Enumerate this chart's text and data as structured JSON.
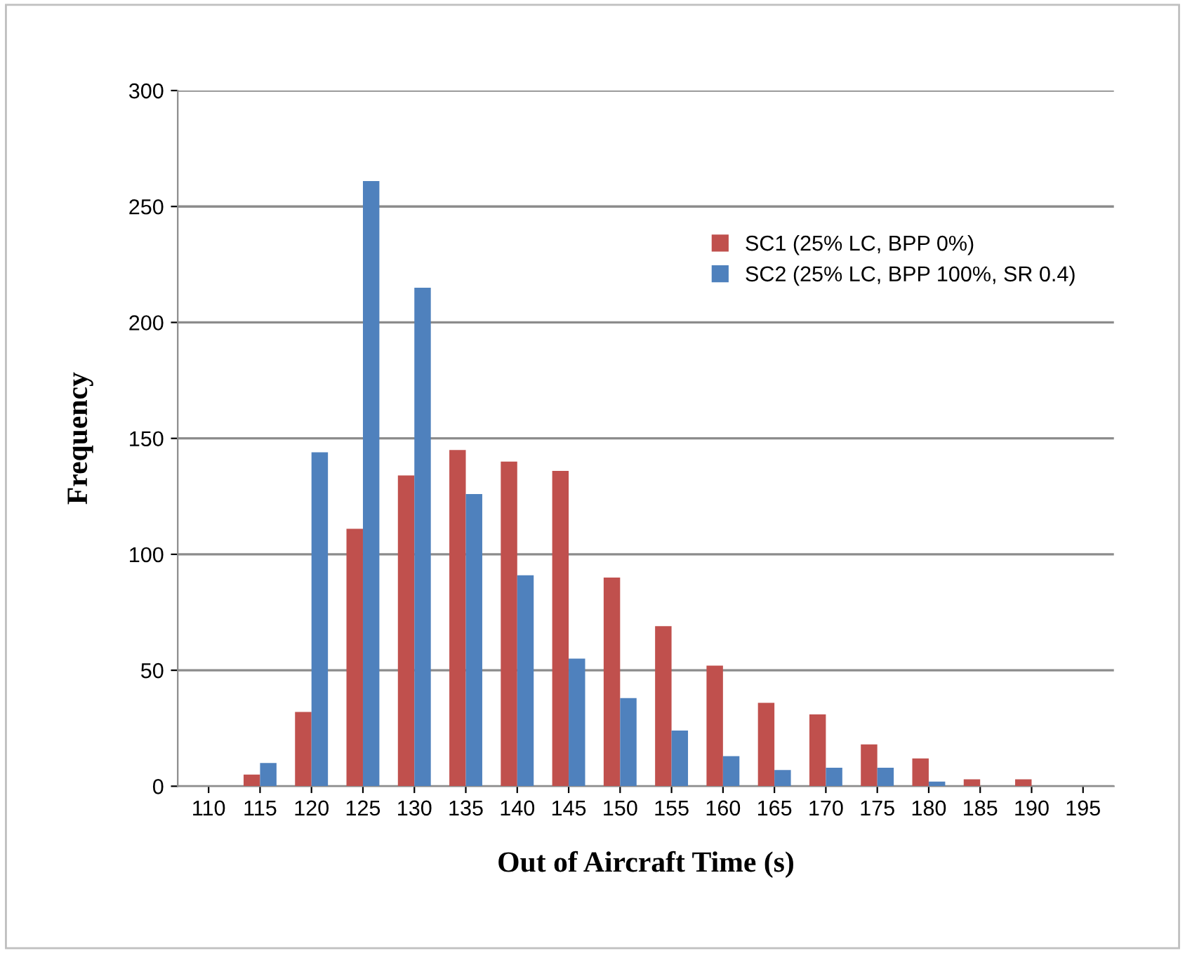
{
  "chart_data": {
    "type": "bar",
    "xlabel": "Out of Aircraft Time (s)",
    "ylabel": "Frequency",
    "categories": [
      "110",
      "115",
      "120",
      "125",
      "130",
      "135",
      "140",
      "145",
      "150",
      "155",
      "160",
      "165",
      "170",
      "175",
      "180",
      "185",
      "190",
      "195"
    ],
    "series": [
      {
        "name": "SC1 (25% LC, BPP 0%)",
        "color": "#c0504d",
        "values": [
          0,
          5,
          32,
          111,
          134,
          145,
          140,
          136,
          90,
          69,
          52,
          36,
          31,
          18,
          12,
          3,
          3,
          0
        ]
      },
      {
        "name": "SC2 (25% LC, BPP 100%, SR 0.4)",
        "color": "#4f81bd",
        "values": [
          0,
          10,
          144,
          261,
          215,
          126,
          91,
          55,
          38,
          24,
          13,
          7,
          8,
          8,
          2,
          0,
          0,
          0
        ]
      }
    ],
    "ylim": [
      0,
      300
    ],
    "yticks": [
      0,
      50,
      100,
      150,
      200,
      250,
      300
    ],
    "grid": "y",
    "legend": "top right"
  }
}
